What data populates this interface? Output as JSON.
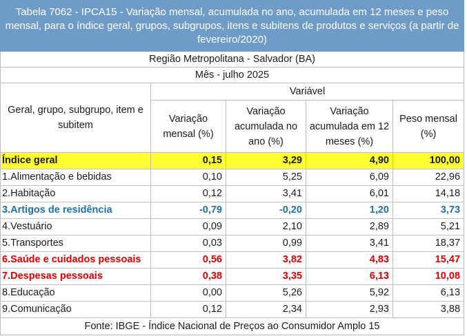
{
  "title": "Tabela 7062 - IPCA15 - Variação mensal, acumulada no ano, acumulada em 12 meses e peso mensal, para o índice geral, grupos, subgrupos, itens e subitens de produtos e serviços (a partir de fevereiro/2020)",
  "region": "Região Metropolitana - Salvador (BA)",
  "month": "Mês - julho 2025",
  "header": {
    "row_label": "Geral, grupo, subgrupo, item e subitem",
    "variable": "Variável",
    "cols": [
      "Variação mensal (%)",
      "Variação acumulada no ano (%)",
      "Variação acumulada em 12 meses (%)",
      "Peso mensal (%)"
    ]
  },
  "rows": [
    {
      "name": "Índice geral",
      "values": [
        "0,15",
        "3,29",
        "4,90",
        "100,00"
      ],
      "style": "yellow"
    },
    {
      "name": "1.Alimentação e bebidas",
      "values": [
        "0,10",
        "5,25",
        "6,09",
        "22,96"
      ],
      "style": ""
    },
    {
      "name": "2.Habitação",
      "values": [
        "0,12",
        "3,41",
        "6,01",
        "14,18"
      ],
      "style": ""
    },
    {
      "name": "3.Artigos de residência",
      "values": [
        "-0,79",
        "-0,20",
        "1,20",
        "3,73"
      ],
      "style": "blue"
    },
    {
      "name": "4.Vestuário",
      "values": [
        "0,09",
        "2,10",
        "2,89",
        "5,21"
      ],
      "style": ""
    },
    {
      "name": "5.Transportes",
      "values": [
        "0,03",
        "0,99",
        "3,41",
        "18,37"
      ],
      "style": ""
    },
    {
      "name": "6.Saúde e cuidados pessoais",
      "values": [
        "0,56",
        "3,82",
        "4,83",
        "15,47"
      ],
      "style": "red"
    },
    {
      "name": "7.Despesas pessoais",
      "values": [
        "0,38",
        "3,35",
        "6,13",
        "10,08"
      ],
      "style": "red"
    },
    {
      "name": "8.Educação",
      "values": [
        "0,00",
        "5,26",
        "5,92",
        "6,13"
      ],
      "style": ""
    },
    {
      "name": "9.Comunicação",
      "values": [
        "0,12",
        "2,34",
        "2,93",
        "3,88"
      ],
      "style": ""
    }
  ],
  "footer": "Fonte: IBGE - Índice Nacional de Preços ao Consumidor Amplo 15",
  "colors": {
    "title_bg": "#6f9bc9",
    "highlight_yellow": "#ffff33",
    "blue": "#1f6fb4",
    "red": "#e00000"
  }
}
